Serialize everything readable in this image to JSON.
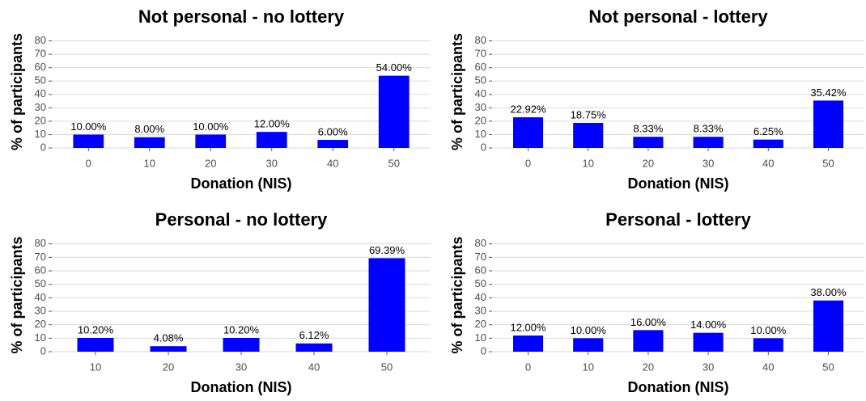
{
  "chart_data": [
    {
      "type": "bar",
      "title": "Not personal - no lottery",
      "x_label": "Donation (NIS)",
      "y_label": "% of participants",
      "categories": [
        "0",
        "10",
        "20",
        "30",
        "40",
        "50"
      ],
      "values": [
        10,
        8,
        10,
        12,
        6,
        54
      ],
      "value_labels": [
        "10.00%",
        "8.00%",
        "10.00%",
        "12.00%",
        "6.00%",
        "54.00%"
      ],
      "color": "#0000ff",
      "ylim": [
        0,
        84
      ],
      "yticks": [
        0,
        10,
        20,
        30,
        40,
        50,
        60,
        70,
        80
      ],
      "grid": true
    },
    {
      "type": "bar",
      "title": "Not personal - lottery",
      "x_label": "Donation (NIS)",
      "y_label": "% of participants",
      "categories": [
        "0",
        "10",
        "20",
        "30",
        "40",
        "50"
      ],
      "values": [
        22.92,
        18.75,
        8.33,
        8.33,
        6.25,
        35.42
      ],
      "value_labels": [
        "22.92%",
        "18.75%",
        "8.33%",
        "8.33%",
        "6.25%",
        "35.42%"
      ],
      "color": "#0000ff",
      "ylim": [
        0,
        84
      ],
      "yticks": [
        0,
        10,
        20,
        30,
        40,
        50,
        60,
        70,
        80
      ],
      "grid": true
    },
    {
      "type": "bar",
      "title": "Personal - no lottery",
      "x_label": "Donation (NIS)",
      "y_label": "% of participants",
      "categories": [
        "10",
        "20",
        "30",
        "40",
        "50"
      ],
      "values": [
        10.2,
        4.08,
        10.2,
        6.12,
        69.39
      ],
      "value_labels": [
        "10.20%",
        "4.08%",
        "10.20%",
        "6.12%",
        "69.39%"
      ],
      "color": "#0000ff",
      "ylim": [
        0,
        84
      ],
      "yticks": [
        0,
        10,
        20,
        30,
        40,
        50,
        60,
        70,
        80
      ],
      "grid": true
    },
    {
      "type": "bar",
      "title": "Personal - lottery",
      "x_label": "Donation (NIS)",
      "y_label": "% of participants",
      "categories": [
        "0",
        "10",
        "20",
        "30",
        "40",
        "50"
      ],
      "values": [
        12,
        10,
        16,
        14,
        10,
        38
      ],
      "value_labels": [
        "12.00%",
        "10.00%",
        "16.00%",
        "14.00%",
        "10.00%",
        "38.00%"
      ],
      "color": "#0000ff",
      "ylim": [
        0,
        84
      ],
      "yticks": [
        0,
        10,
        20,
        30,
        40,
        50,
        60,
        70,
        80
      ],
      "grid": true
    }
  ]
}
